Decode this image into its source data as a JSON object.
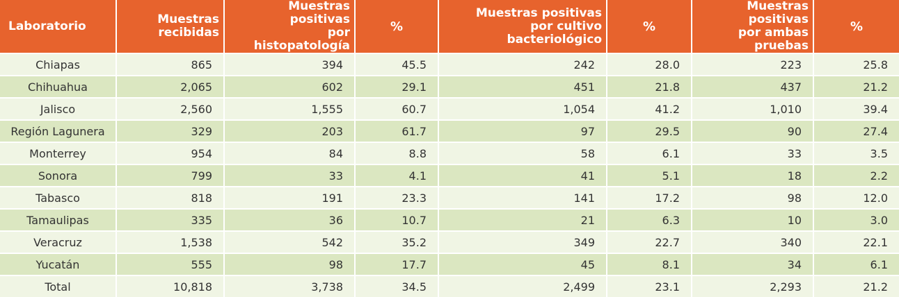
{
  "headers": [
    "Laboratorio",
    "Muestras\nrecibidas",
    "Muestras positivas\npor histopatología",
    "%",
    "Muestras positivas\npor cultivo bacteriológico",
    "%",
    "Muestras positivas\npor ambas pruebas",
    "%"
  ],
  "rows": [
    [
      "Chiapas",
      "865",
      "394",
      "45.5",
      "242",
      "28.0",
      "223",
      "25.8"
    ],
    [
      "Chihuahua",
      "2,065",
      "602",
      "29.1",
      "451",
      "21.8",
      "437",
      "21.2"
    ],
    [
      "Jalisco",
      "2,560",
      "1,555",
      "60.7",
      "1,054",
      "41.2",
      "1,010",
      "39.4"
    ],
    [
      "Región Lagunera",
      "329",
      "203",
      "61.7",
      "97",
      "29.5",
      "90",
      "27.4"
    ],
    [
      "Monterrey",
      "954",
      "84",
      "8.8",
      "58",
      "6.1",
      "33",
      "3.5"
    ],
    [
      "Sonora",
      "799",
      "33",
      "4.1",
      "41",
      "5.1",
      "18",
      "2.2"
    ],
    [
      "Tabasco",
      "818",
      "191",
      "23.3",
      "141",
      "17.2",
      "98",
      "12.0"
    ],
    [
      "Tamaulipas",
      "335",
      "36",
      "10.7",
      "21",
      "6.3",
      "10",
      "3.0"
    ],
    [
      "Veracruz",
      "1,538",
      "542",
      "35.2",
      "349",
      "22.7",
      "340",
      "22.1"
    ],
    [
      "Yucatán",
      "555",
      "98",
      "17.7",
      "45",
      "8.1",
      "34",
      "6.1"
    ],
    [
      "Total",
      "10,818",
      "3,738",
      "34.5",
      "2,499",
      "23.1",
      "2,293",
      "21.2"
    ]
  ],
  "colors": {
    "header_bg": "#e7632d",
    "row_light": "#f0f5e4",
    "row_dark": "#dbe7c1"
  }
}
